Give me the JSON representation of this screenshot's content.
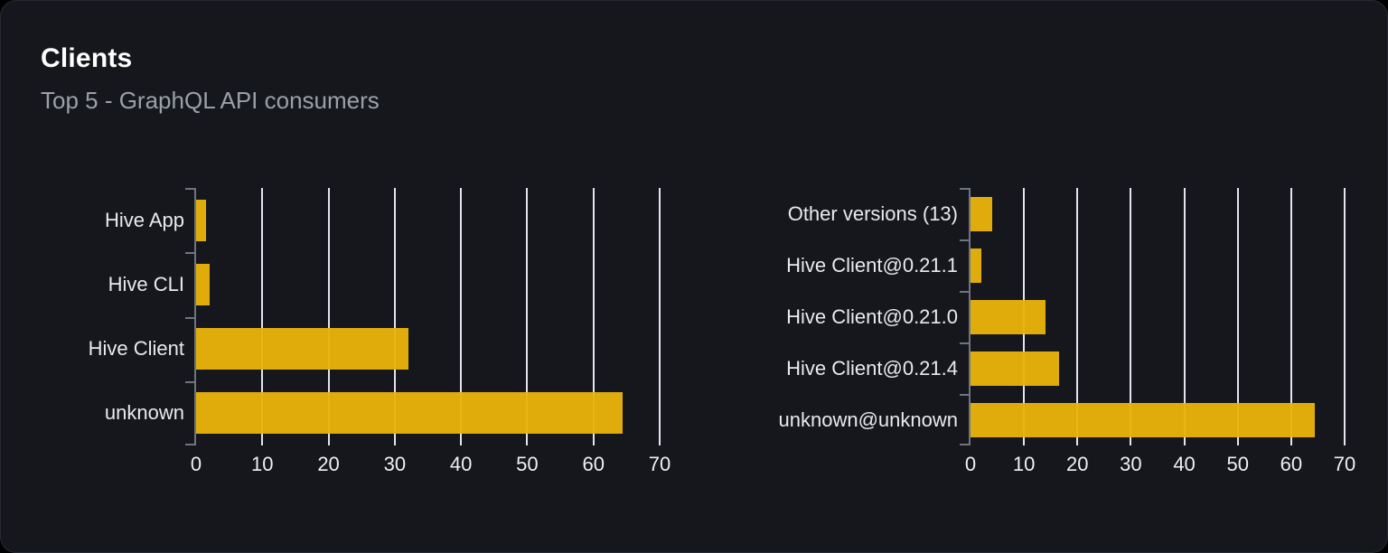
{
  "card": {
    "title": "Clients",
    "subtitle": "Top 5 - GraphQL API consumers"
  },
  "theme": {
    "page_background": "#000000",
    "card_background": "#15171d",
    "card_border": "#262a32",
    "title_color": "#ffffff",
    "subtitle_color": "#9aa0aa",
    "bar_color": "#e9b30b",
    "gridline_color": "#e2e5ee",
    "axis_color": "#6e7580",
    "category_label_color": "#e8eaed",
    "tick_label_color": "#eef0f3"
  },
  "chart_data": [
    {
      "type": "bar",
      "orientation": "horizontal",
      "name": "clients-by-name",
      "categories": [
        "Hive App",
        "Hive CLI",
        "Hive Client",
        "unknown"
      ],
      "values": [
        1.5,
        2,
        32,
        64.4
      ],
      "xticks": [
        0,
        10,
        20,
        30,
        40,
        50,
        60,
        70
      ],
      "xlim": [
        0,
        70
      ],
      "grid": true,
      "legend": "none"
    },
    {
      "type": "bar",
      "orientation": "horizontal",
      "name": "clients-by-version",
      "categories": [
        "Other versions (13)",
        "Hive Client@0.21.1",
        "Hive Client@0.21.0",
        "Hive Client@0.21.4",
        "unknown@unknown"
      ],
      "values": [
        4,
        2,
        14,
        16.5,
        64.4
      ],
      "xticks": [
        0,
        10,
        20,
        30,
        40,
        50,
        60,
        70
      ],
      "xlim": [
        0,
        70
      ],
      "grid": true,
      "legend": "none"
    }
  ]
}
